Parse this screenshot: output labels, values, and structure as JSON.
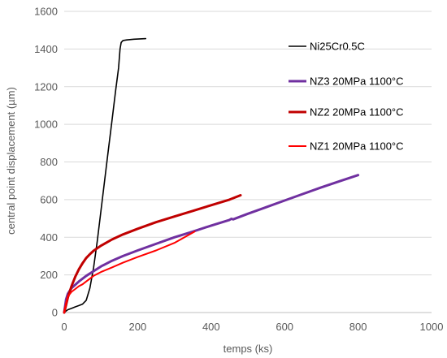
{
  "chart_data": {
    "type": "line",
    "xlabel": "temps (ks)",
    "ylabel": "central point displacement (µm)",
    "xlim": [
      0,
      1000
    ],
    "ylim": [
      0,
      1600
    ],
    "x_ticks": [
      0,
      200,
      400,
      600,
      800,
      1000
    ],
    "y_ticks": [
      0,
      200,
      400,
      600,
      800,
      1000,
      1200,
      1400,
      1600
    ],
    "grid": "horizontal",
    "legend_position": "right",
    "series": [
      {
        "name": "Ni25Cr0.5C",
        "color": "#000000",
        "stroke_width": 1.6,
        "points": [
          [
            0,
            0
          ],
          [
            5,
            8
          ],
          [
            10,
            15
          ],
          [
            20,
            22
          ],
          [
            30,
            30
          ],
          [
            40,
            37
          ],
          [
            50,
            45
          ],
          [
            60,
            65
          ],
          [
            70,
            130
          ],
          [
            80,
            240
          ],
          [
            90,
            380
          ],
          [
            100,
            540
          ],
          [
            110,
            700
          ],
          [
            120,
            860
          ],
          [
            130,
            1020
          ],
          [
            140,
            1180
          ],
          [
            148,
            1300
          ],
          [
            152,
            1400
          ],
          [
            155,
            1435
          ],
          [
            160,
            1445
          ],
          [
            170,
            1448
          ],
          [
            190,
            1452
          ],
          [
            222,
            1455
          ]
        ]
      },
      {
        "name": "NZ3 20MPa 1100°C",
        "color": "#7030a0",
        "stroke_width": 3,
        "points": [
          [
            0,
            0
          ],
          [
            5,
            70
          ],
          [
            10,
            100
          ],
          [
            20,
            130
          ],
          [
            40,
            165
          ],
          [
            60,
            195
          ],
          [
            80,
            220
          ],
          [
            100,
            245
          ],
          [
            130,
            275
          ],
          [
            160,
            300
          ],
          [
            200,
            330
          ],
          [
            250,
            365
          ],
          [
            300,
            400
          ],
          [
            350,
            430
          ],
          [
            400,
            462
          ],
          [
            450,
            492
          ],
          [
            455,
            498
          ],
          [
            460,
            495
          ],
          [
            500,
            525
          ],
          [
            550,
            560
          ],
          [
            600,
            595
          ],
          [
            650,
            630
          ],
          [
            700,
            665
          ],
          [
            750,
            698
          ],
          [
            800,
            730
          ]
        ]
      },
      {
        "name": "NZ2 20MPa 1100°C",
        "color": "#c00000",
        "stroke_width": 3,
        "points": [
          [
            0,
            0
          ],
          [
            5,
            40
          ],
          [
            10,
            80
          ],
          [
            20,
            140
          ],
          [
            30,
            190
          ],
          [
            40,
            230
          ],
          [
            50,
            262
          ],
          [
            60,
            290
          ],
          [
            70,
            310
          ],
          [
            80,
            328
          ],
          [
            100,
            355
          ],
          [
            130,
            388
          ],
          [
            160,
            415
          ],
          [
            200,
            445
          ],
          [
            250,
            480
          ],
          [
            300,
            510
          ],
          [
            350,
            540
          ],
          [
            400,
            570
          ],
          [
            450,
            600
          ],
          [
            480,
            623
          ]
        ]
      },
      {
        "name": "NZ1 20MPa 1100°C",
        "color": "#ff0000",
        "stroke_width": 2,
        "points": [
          [
            0,
            0
          ],
          [
            5,
            50
          ],
          [
            10,
            85
          ],
          [
            20,
            110
          ],
          [
            30,
            125
          ],
          [
            40,
            140
          ],
          [
            50,
            150
          ],
          [
            60,
            165
          ],
          [
            70,
            180
          ],
          [
            80,
            195
          ],
          [
            100,
            215
          ],
          [
            130,
            240
          ],
          [
            160,
            265
          ],
          [
            200,
            295
          ],
          [
            250,
            330
          ],
          [
            300,
            370
          ],
          [
            355,
            430
          ]
        ]
      }
    ]
  }
}
